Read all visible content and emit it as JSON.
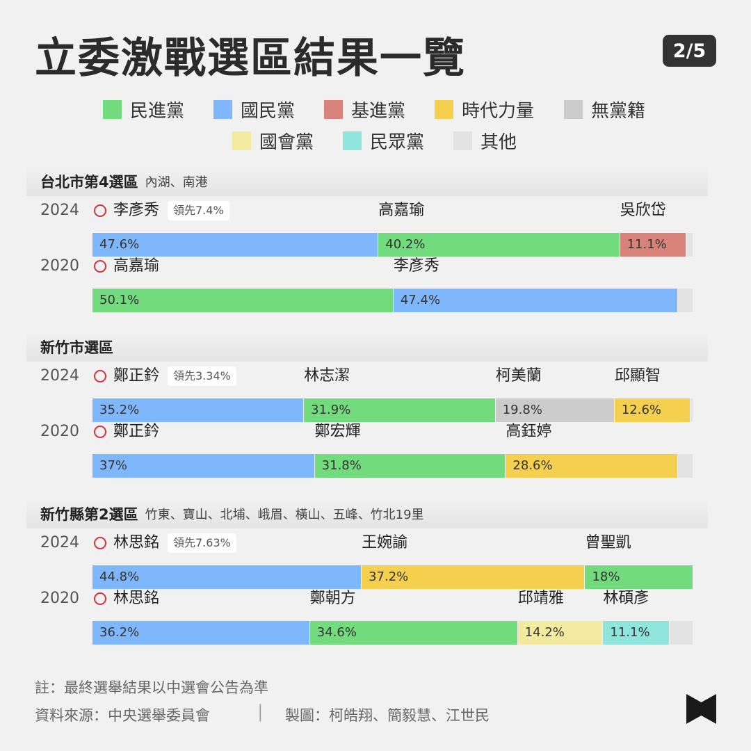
{
  "header": {
    "title": "立委激戰選區結果一覽",
    "page_indicator": "2/5"
  },
  "legend": [
    {
      "label": "民進黨",
      "color": "#71db7d"
    },
    {
      "label": "國民黨",
      "color": "#7eb7fb"
    },
    {
      "label": "基進黨",
      "color": "#d98279"
    },
    {
      "label": "時代力量",
      "color": "#f4d04e"
    },
    {
      "label": "無黨籍",
      "color": "#cccccc"
    },
    {
      "label": "國會黨",
      "color": "#f2ea9e"
    },
    {
      "label": "民眾黨",
      "color": "#8fe4dc"
    },
    {
      "label": "其他",
      "color": "#e3e3e3"
    }
  ],
  "chart_data": {
    "type": "bar",
    "orientation": "horizontal-stacked",
    "districts": [
      {
        "name": "台北市第4選區",
        "area": "內湖、南港",
        "elections": [
          {
            "year": "2024",
            "lead": "領先7.4%",
            "segments": [
              {
                "candidate": "李彥秀",
                "party": "國民黨",
                "value": 47.6,
                "label": "47.6%",
                "winner": true
              },
              {
                "candidate": "高嘉瑜",
                "party": "民進黨",
                "value": 40.2,
                "label": "40.2%"
              },
              {
                "candidate": "吳欣岱",
                "party": "基進黨",
                "value": 11.1,
                "label": "11.1%"
              },
              {
                "candidate": "",
                "party": "其他",
                "value": 1.1,
                "label": ""
              }
            ]
          },
          {
            "year": "2020",
            "lead": "",
            "segments": [
              {
                "candidate": "高嘉瑜",
                "party": "民進黨",
                "value": 50.1,
                "label": "50.1%",
                "winner": true
              },
              {
                "candidate": "李彥秀",
                "party": "國民黨",
                "value": 47.4,
                "label": "47.4%"
              },
              {
                "candidate": "",
                "party": "其他",
                "value": 2.5,
                "label": ""
              }
            ]
          }
        ]
      },
      {
        "name": "新竹市選區",
        "area": "",
        "elections": [
          {
            "year": "2024",
            "lead": "領先3.34%",
            "segments": [
              {
                "candidate": "鄭正鈐",
                "party": "國民黨",
                "value": 35.2,
                "label": "35.2%",
                "winner": true
              },
              {
                "candidate": "林志潔",
                "party": "民進黨",
                "value": 31.9,
                "label": "31.9%"
              },
              {
                "candidate": "柯美蘭",
                "party": "無黨籍",
                "value": 19.8,
                "label": "19.8%"
              },
              {
                "candidate": "邱顯智",
                "party": "時代力量",
                "value": 12.6,
                "label": "12.6%"
              },
              {
                "candidate": "",
                "party": "其他",
                "value": 0.5,
                "label": ""
              }
            ]
          },
          {
            "year": "2020",
            "lead": "",
            "segments": [
              {
                "candidate": "鄭正鈐",
                "party": "國民黨",
                "value": 37,
                "label": "37%",
                "winner": true
              },
              {
                "candidate": "鄭宏輝",
                "party": "民進黨",
                "value": 31.8,
                "label": "31.8%"
              },
              {
                "candidate": "高鈺婷",
                "party": "時代力量",
                "value": 28.6,
                "label": "28.6%"
              },
              {
                "candidate": "",
                "party": "其他",
                "value": 2.6,
                "label": ""
              }
            ]
          }
        ]
      },
      {
        "name": "新竹縣第2選區",
        "area": "竹東、寶山、北埔、峨眉、橫山、五峰、竹北19里",
        "elections": [
          {
            "year": "2024",
            "lead": "領先7.63%",
            "segments": [
              {
                "candidate": "林思銘",
                "party": "國民黨",
                "value": 44.8,
                "label": "44.8%",
                "winner": true
              },
              {
                "candidate": "王婉諭",
                "party": "時代力量",
                "value": 37.2,
                "label": "37.2%"
              },
              {
                "candidate": "曾聖凱",
                "party": "民進黨",
                "value": 18,
                "label": "18%"
              }
            ]
          },
          {
            "year": "2020",
            "lead": "",
            "segments": [
              {
                "candidate": "林思銘",
                "party": "國民黨",
                "value": 36.2,
                "label": "36.2%",
                "winner": true
              },
              {
                "candidate": "鄭朝方",
                "party": "民進黨",
                "value": 34.6,
                "label": "34.6%"
              },
              {
                "candidate": "邱靖雅",
                "party": "國會黨",
                "value": 14.2,
                "label": "14.2%"
              },
              {
                "candidate": "林碩彥",
                "party": "民眾黨",
                "value": 11.1,
                "label": "11.1%"
              },
              {
                "candidate": "",
                "party": "其他",
                "value": 3.9,
                "label": ""
              }
            ]
          }
        ]
      }
    ]
  },
  "footer": {
    "note": "註：最終選舉結果以中選會公告為準",
    "source": "資料來源：中央選舉委員會",
    "separator": "│",
    "credit": "製圖：柯皓翔、簡毅慧、江世民"
  }
}
